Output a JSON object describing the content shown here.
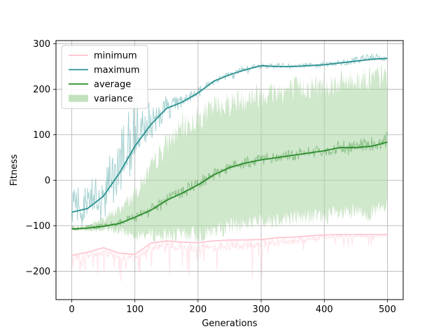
{
  "chart_data": {
    "type": "line",
    "title": "",
    "xlabel": "Generations",
    "ylabel": "Fitness",
    "xlim": [
      -25,
      525
    ],
    "ylim": [
      -262,
      307
    ],
    "xticks": [
      0,
      100,
      200,
      300,
      400,
      500
    ],
    "yticks": [
      -200,
      -100,
      0,
      100,
      200,
      300
    ],
    "grid": true,
    "legend_position": "upper-left",
    "x": [
      0,
      25,
      50,
      75,
      100,
      125,
      150,
      175,
      200,
      225,
      250,
      275,
      300,
      325,
      350,
      375,
      400,
      425,
      450,
      475,
      500
    ],
    "series": [
      {
        "name": "minimum",
        "color": "#ffc0cb",
        "smoothed": [
          -165,
          -158,
          -148,
          -160,
          -163,
          -138,
          -133,
          -136,
          -137,
          -133,
          -131,
          -131,
          -130,
          -126,
          -125,
          -122,
          -120,
          -119,
          -119,
          -119,
          -119
        ],
        "raw_low": [
          -225,
          -222,
          -225,
          -225,
          -225,
          -205,
          -210,
          -215,
          -225,
          -225,
          -220,
          -225,
          -220,
          -200,
          -195,
          -180,
          -155,
          -160,
          -150,
          -145,
          -140
        ]
      },
      {
        "name": "maximum",
        "color": "#2a9090",
        "smoothed": [
          -70,
          -62,
          -35,
          15,
          75,
          122,
          158,
          172,
          192,
          218,
          232,
          243,
          252,
          250,
          250,
          252,
          254,
          258,
          262,
          266,
          268
        ],
        "raw_low": [
          -100,
          -110,
          -85,
          -40,
          25,
          80,
          130,
          158,
          180,
          210,
          220,
          230,
          245,
          242,
          245,
          245,
          248,
          252,
          255,
          258,
          262
        ],
        "raw_high": [
          -5,
          0,
          30,
          100,
          200,
          175,
          185,
          185,
          205,
          225,
          240,
          255,
          258,
          258,
          255,
          258,
          260,
          265,
          272,
          280,
          276
        ]
      },
      {
        "name": "average",
        "color": "#2b8c2b",
        "smoothed": [
          -107,
          -105,
          -101,
          -95,
          -81,
          -66,
          -44,
          -28,
          -10,
          12,
          28,
          38,
          45,
          50,
          55,
          60,
          65,
          72,
          72,
          75,
          84
        ],
        "raw_low": [
          -112,
          -110,
          -108,
          -103,
          -95,
          -80,
          -60,
          -42,
          -22,
          0,
          15,
          25,
          32,
          38,
          42,
          45,
          50,
          55,
          55,
          60,
          65
        ],
        "raw_high": [
          -100,
          -98,
          -94,
          -85,
          -70,
          -52,
          -30,
          -12,
          8,
          25,
          40,
          52,
          58,
          65,
          68,
          75,
          85,
          88,
          92,
          98,
          110
        ]
      },
      {
        "name": "variance",
        "color": "#a8d4a0",
        "lower": [
          -108,
          -110,
          -108,
          -112,
          -118,
          -120,
          -120,
          -120,
          -118,
          -110,
          -100,
          -95,
          -90,
          -85,
          -80,
          -80,
          -78,
          -75,
          -72,
          -70,
          -60
        ],
        "upper": [
          -105,
          -100,
          -85,
          -65,
          -30,
          25,
          80,
          115,
          135,
          160,
          170,
          180,
          190,
          195,
          200,
          205,
          210,
          215,
          220,
          225,
          230
        ]
      }
    ]
  }
}
